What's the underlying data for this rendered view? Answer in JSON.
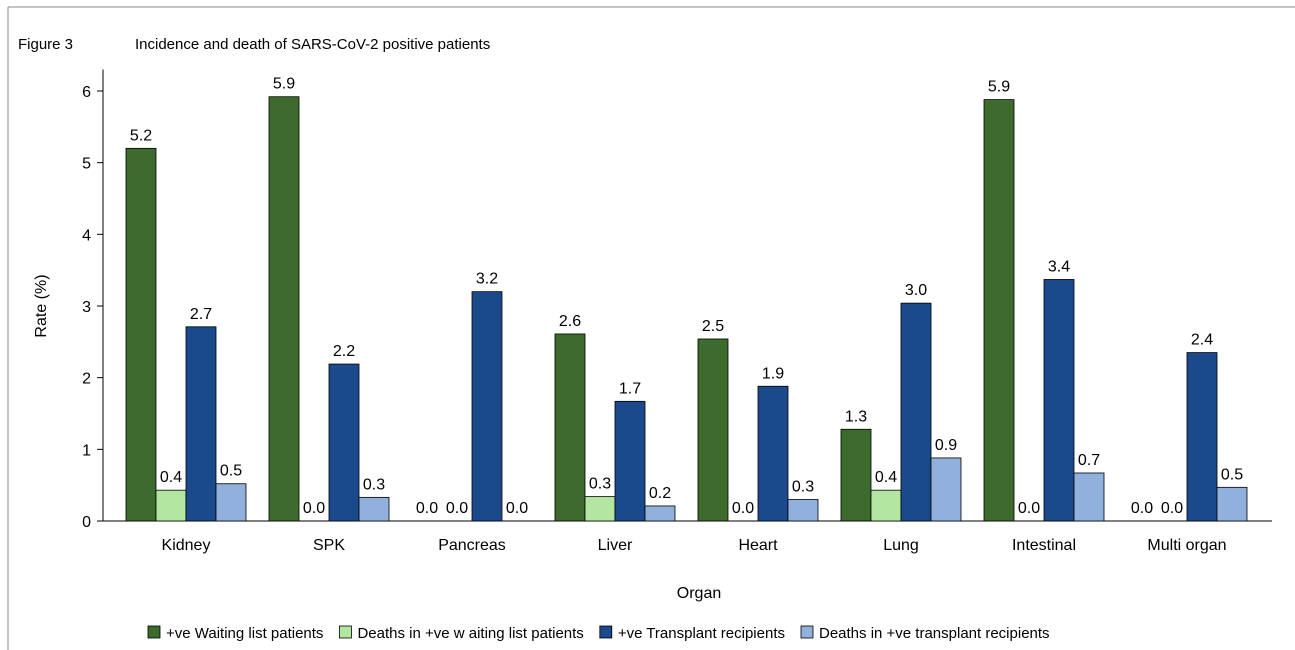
{
  "chart_data": {
    "type": "bar",
    "figure_label": "Figure 3",
    "title": "Incidence and death of SARS-CoV-2 positive patients",
    "xlabel": "Organ",
    "ylabel": "Rate (%)",
    "categories": [
      "Kidney",
      "SPK",
      "Pancreas",
      "Liver",
      "Heart",
      "Lung",
      "Intestinal",
      "Multi organ"
    ],
    "series": [
      {
        "name": "+ve Waiting list patients",
        "color": "#3d6b2d",
        "values": [
          5.2,
          5.92,
          0,
          2.61,
          2.54,
          1.28,
          5.88,
          0
        ],
        "value_labels": [
          "5.2",
          "5.9",
          "0.0",
          "2.6",
          "2.5",
          "1.3",
          "5.9",
          "0.0"
        ]
      },
      {
        "name": "Deaths in +ve w aiting list patients",
        "color": "#b3e6a0",
        "values": [
          0.43,
          0,
          0,
          0.34,
          0,
          0.43,
          0,
          0
        ],
        "value_labels": [
          "0.4",
          "0.0",
          "0.0",
          "0.3",
          "0.0",
          "0.4",
          "0.0",
          "0.0"
        ]
      },
      {
        "name": "+ve Transplant recipients",
        "color": "#1a4a8c",
        "values": [
          2.71,
          2.19,
          3.2,
          1.67,
          1.88,
          3.04,
          3.37,
          2.35
        ],
        "value_labels": [
          "2.7",
          "2.2",
          "3.2",
          "1.7",
          "1.9",
          "3.0",
          "3.4",
          "2.4"
        ]
      },
      {
        "name": "Deaths in +ve transplant recipients",
        "color": "#91b0dc",
        "values": [
          0.52,
          0.33,
          0,
          0.21,
          0.3,
          0.88,
          0.67,
          0.47
        ],
        "value_labels": [
          "0.5",
          "0.3",
          "0.0",
          "0.2",
          "0.3",
          "0.9",
          "0.7",
          "0.5"
        ]
      }
    ],
    "ylim": [
      0,
      6.3
    ],
    "yticks": [
      0,
      1,
      2,
      3,
      4,
      5,
      6
    ],
    "legend": "bottom"
  }
}
